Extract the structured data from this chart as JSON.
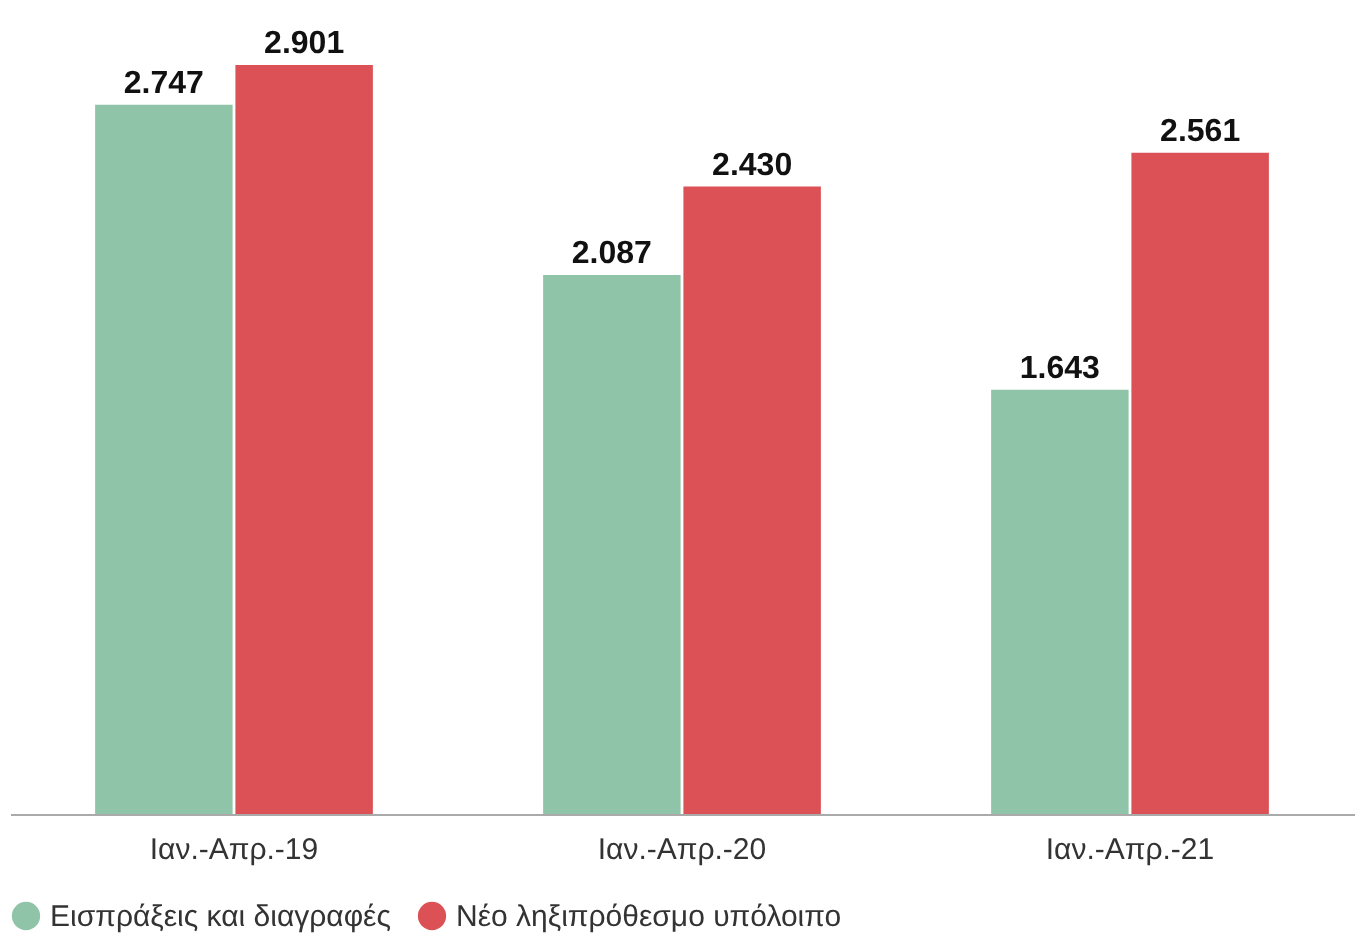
{
  "chart_data": {
    "type": "bar",
    "categories": [
      "Ιαν.-Απρ.-19",
      "Ιαν.-Απρ.-20",
      "Ιαν.-Απρ.-21"
    ],
    "series": [
      {
        "name": "Εισπράξεις και διαγραφές",
        "color": "#8fc4a8",
        "values": [
          2.747,
          2.087,
          1.643
        ],
        "value_labels": [
          "2.747",
          "2.087",
          "1.643"
        ]
      },
      {
        "name": "Νέο ληξιπρόθεσμο υπόλοιπο",
        "color": "#db5155",
        "values": [
          2.901,
          2.43,
          2.561
        ],
        "value_labels": [
          "2.901",
          "2.430",
          "2.561"
        ]
      }
    ],
    "grid": false,
    "legend": "bottom"
  }
}
